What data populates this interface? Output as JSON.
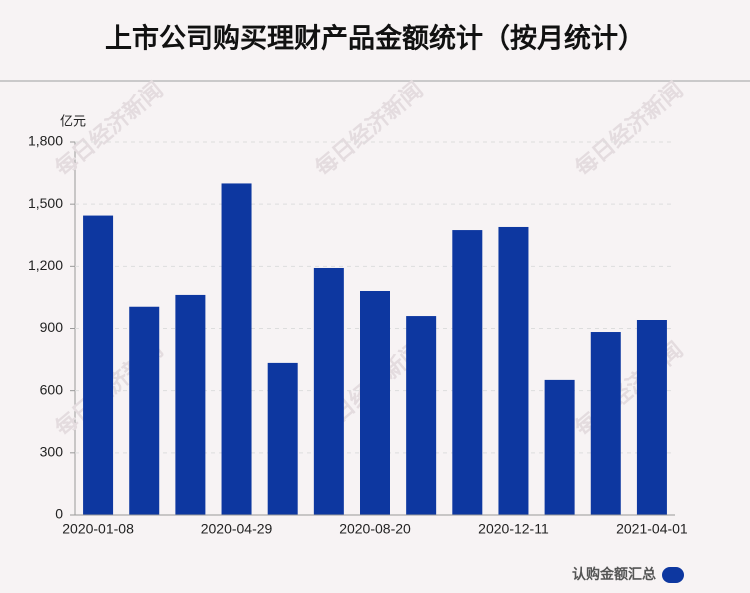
{
  "chart_data": {
    "type": "bar",
    "title": "上市公司购买理财产品金额统计（按月统计）",
    "y_unit": "亿元",
    "watermark": "每日经济新闻",
    "categories": [
      "2020-01-08",
      null,
      null,
      "2020-04-29",
      null,
      null,
      "2020-08-20",
      null,
      null,
      "2020-12-11",
      null,
      null,
      "2021-04-01"
    ],
    "series": [
      {
        "name": "认购金额汇总",
        "color": "#0d37a0",
        "values": [
          1445,
          1005,
          1062,
          1600,
          734,
          1192,
          1081,
          960,
          1375,
          1390,
          652,
          883,
          941
        ]
      }
    ],
    "ylim": [
      0,
      1800
    ],
    "yticks": [
      0,
      300,
      600,
      900,
      {
        "value": 1200,
        "label": "1,200"
      },
      {
        "value": 1500,
        "label": "1,500"
      },
      {
        "value": 1800,
        "label": "1,800"
      }
    ],
    "grid": true,
    "legend": "bottom-right"
  }
}
